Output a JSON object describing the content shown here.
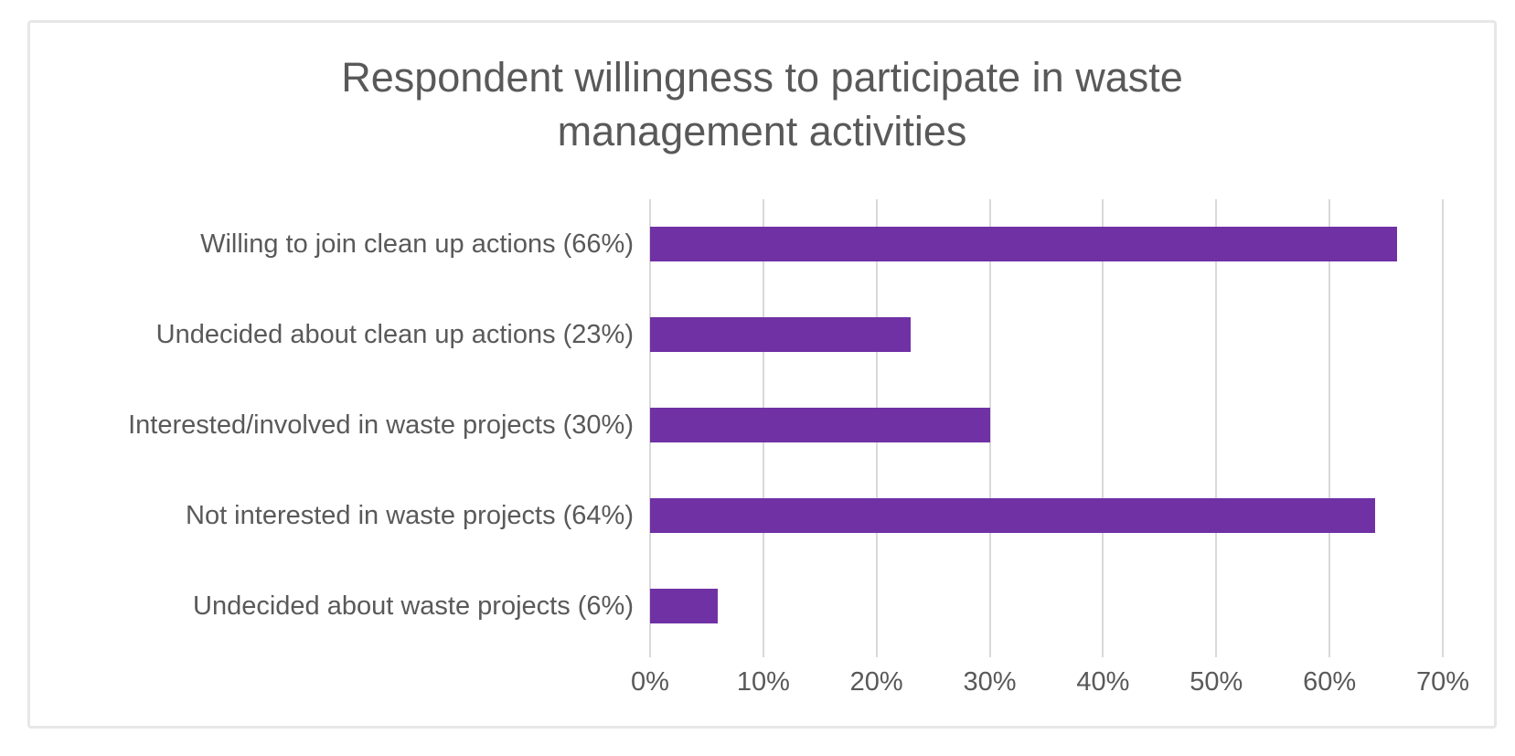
{
  "chart_data": {
    "type": "bar",
    "orientation": "horizontal",
    "title": "Respondent willingness to participate in waste management activities",
    "categories": [
      "Willing to join clean up actions (66%)",
      "Undecided about clean up actions (23%)",
      "Interested/involved in waste projects (30%)",
      "Not interested in waste projects (64%)",
      "Undecided about waste projects (6%)"
    ],
    "values": [
      66,
      23,
      30,
      64,
      6
    ],
    "xlabel": "",
    "ylabel": "",
    "xlim": [
      0,
      70
    ],
    "xtick_labels": [
      "0%",
      "10%",
      "20%",
      "30%",
      "40%",
      "50%",
      "60%",
      "70%"
    ],
    "xtick_values": [
      0,
      10,
      20,
      30,
      40,
      50,
      60,
      70
    ],
    "grid": "vertical-only",
    "legend": false
  },
  "colors": {
    "bar": "#7031A5",
    "gridline": "#d9d9d9",
    "text": "#595959",
    "frame_border": "#e7e7e7",
    "background": "#ffffff"
  }
}
